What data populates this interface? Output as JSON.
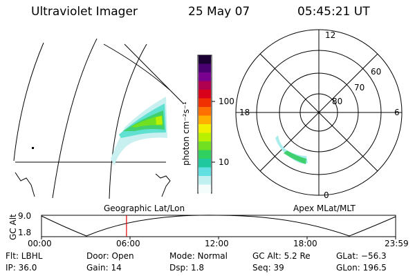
{
  "header": {
    "instrument": "Ultraviolet Imager",
    "date": "25 May 07",
    "time": "05:45:21 UT"
  },
  "colorbar": {
    "unit_label": "photon cm⁻²s⁻¹",
    "ticks": [
      "100",
      "10"
    ],
    "colors": [
      "#1a0033",
      "#4a0070",
      "#7a0090",
      "#b00050",
      "#d8001a",
      "#f03000",
      "#ff7000",
      "#ffb000",
      "#f0f000",
      "#b8f000",
      "#70e020",
      "#30d060",
      "#20c8a0",
      "#60e0e0",
      "#c0f0f0",
      "#f4fcfc"
    ]
  },
  "map_left": {
    "label": "Geographic Lat/Lon"
  },
  "polar": {
    "label": "Apex MLat/MLT",
    "mlt_labels": {
      "top": "12",
      "left": "18",
      "right": "6",
      "bottom": "0"
    },
    "lat_labels": [
      "60",
      "70",
      "80"
    ]
  },
  "altitude_plot": {
    "ylabel": "GC Alt",
    "yticks": [
      "9.0",
      "1.8"
    ],
    "xticks": [
      "00:00",
      "06:00",
      "12:00",
      "18:00",
      "23:59"
    ],
    "marker_time_hours": 5.76
  },
  "status": {
    "flt": "Flt: LBHL",
    "ip": "IP: 36.0",
    "door": "Door: Open",
    "gain": "Gain: 14",
    "mode": "Mode: Normal",
    "dsp": "Dsp:    1.8",
    "gc_alt": "GC Alt: 5.2 Re",
    "seq": "Seq: 39",
    "glat": "GLat: −56.3",
    "glon": "GLon: 196.5"
  }
}
